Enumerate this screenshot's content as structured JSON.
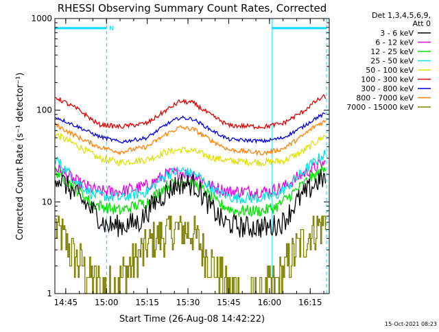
{
  "chart_data": {
    "type": "line",
    "title": "RHESSI Observing Summary Count Rates, Corrected",
    "xlabel": "Start Time (26-Aug-08 14:42:22)",
    "ylabel": "Corrected Count Rate (s⁻¹ detector⁻¹)",
    "x_range_minutes_of_day": [
      881,
      982
    ],
    "y_scale": "log",
    "ylim": [
      1,
      1000
    ],
    "x_ticks": [
      {
        "t": 885,
        "label": "14:45"
      },
      {
        "t": 900,
        "label": "15:00"
      },
      {
        "t": 915,
        "label": "15:15"
      },
      {
        "t": 930,
        "label": "15:30"
      },
      {
        "t": 945,
        "label": "15:45"
      },
      {
        "t": 960,
        "label": "16:00"
      },
      {
        "t": 975,
        "label": "16:15"
      }
    ],
    "y_ticks": [
      {
        "v": 1,
        "label": "1"
      },
      {
        "v": 10,
        "label": "10"
      },
      {
        "v": 100,
        "label": "100"
      },
      {
        "v": 1000,
        "label": "1000"
      }
    ],
    "legend_header": [
      "Det 1,3,4,5,6,9,",
      "Att 0"
    ],
    "legend_position": "right",
    "series": [
      {
        "name": "3 - 6 keV",
        "color": "#000000",
        "jitter": 0.25,
        "points": [
          [
            881,
            20
          ],
          [
            890,
            11
          ],
          [
            895,
            8
          ],
          [
            900,
            5.5
          ],
          [
            905,
            5.5
          ],
          [
            912,
            6
          ],
          [
            918,
            10
          ],
          [
            925,
            15
          ],
          [
            928,
            16
          ],
          [
            933,
            15
          ],
          [
            938,
            9
          ],
          [
            943,
            6
          ],
          [
            950,
            5.3
          ],
          [
            960,
            5.3
          ],
          [
            965,
            6
          ],
          [
            970,
            10
          ],
          [
            975,
            14
          ],
          [
            978,
            17
          ],
          [
            980,
            18
          ]
        ]
      },
      {
        "name": "6 - 12 keV",
        "color": "#e000e0",
        "jitter": 0.14,
        "points": [
          [
            881,
            24
          ],
          [
            890,
            16
          ],
          [
            897,
            13
          ],
          [
            905,
            13
          ],
          [
            915,
            15
          ],
          [
            922,
            20
          ],
          [
            927,
            21
          ],
          [
            932,
            20
          ],
          [
            938,
            15
          ],
          [
            945,
            13
          ],
          [
            960,
            13
          ],
          [
            966,
            15
          ],
          [
            972,
            20
          ],
          [
            977,
            24
          ],
          [
            980,
            26
          ]
        ]
      },
      {
        "name": "12 - 25 keV",
        "color": "#00e000",
        "jitter": 0.13,
        "points": [
          [
            881,
            22
          ],
          [
            890,
            13
          ],
          [
            895,
            9.5
          ],
          [
            905,
            8
          ],
          [
            915,
            10
          ],
          [
            922,
            15
          ],
          [
            928,
            17
          ],
          [
            934,
            15
          ],
          [
            940,
            10
          ],
          [
            947,
            8
          ],
          [
            958,
            8
          ],
          [
            963,
            9
          ],
          [
            968,
            12
          ],
          [
            975,
            18
          ],
          [
            980,
            22
          ]
        ]
      },
      {
        "name": "25 - 50 keV",
        "color": "#00e0e0",
        "jitter": 0.12,
        "points": [
          [
            881,
            30
          ],
          [
            888,
            18
          ],
          [
            895,
            12
          ],
          [
            905,
            11
          ],
          [
            915,
            13
          ],
          [
            922,
            20
          ],
          [
            928,
            22
          ],
          [
            934,
            19
          ],
          [
            940,
            13
          ],
          [
            947,
            11
          ],
          [
            958,
            11
          ],
          [
            963,
            12
          ],
          [
            968,
            16
          ],
          [
            975,
            25
          ],
          [
            980,
            33
          ]
        ]
      },
      {
        "name": "50 - 100 keV",
        "color": "#e0e000",
        "jitter": 0.08,
        "points": [
          [
            881,
            55
          ],
          [
            890,
            40
          ],
          [
            897,
            30
          ],
          [
            905,
            27
          ],
          [
            915,
            29
          ],
          [
            922,
            35
          ],
          [
            927,
            37
          ],
          [
            932,
            36
          ],
          [
            938,
            31
          ],
          [
            945,
            28
          ],
          [
            958,
            27
          ],
          [
            965,
            28
          ],
          [
            972,
            35
          ],
          [
            977,
            45
          ],
          [
            980,
            52
          ]
        ]
      },
      {
        "name": "100 - 300 keV",
        "color": "#e00000",
        "jitter": 0.05,
        "points": [
          [
            881,
            140
          ],
          [
            890,
            100
          ],
          [
            897,
            70
          ],
          [
            905,
            66
          ],
          [
            915,
            72
          ],
          [
            922,
            100
          ],
          [
            927,
            125
          ],
          [
            932,
            120
          ],
          [
            938,
            90
          ],
          [
            945,
            68
          ],
          [
            958,
            66
          ],
          [
            965,
            72
          ],
          [
            972,
            95
          ],
          [
            977,
            125
          ],
          [
            980,
            140
          ]
        ]
      },
      {
        "name": "300 - 800 keV",
        "color": "#0000e0",
        "jitter": 0.04,
        "points": [
          [
            881,
            85
          ],
          [
            890,
            65
          ],
          [
            897,
            52
          ],
          [
            905,
            45
          ],
          [
            915,
            50
          ],
          [
            922,
            70
          ],
          [
            927,
            83
          ],
          [
            932,
            80
          ],
          [
            938,
            62
          ],
          [
            945,
            48
          ],
          [
            958,
            46
          ],
          [
            965,
            50
          ],
          [
            972,
            65
          ],
          [
            977,
            82
          ],
          [
            980,
            90
          ]
        ]
      },
      {
        "name": "800 - 7000 keV",
        "color": "#ff8000",
        "jitter": 0.05,
        "points": [
          [
            881,
            70
          ],
          [
            890,
            50
          ],
          [
            897,
            40
          ],
          [
            905,
            35
          ],
          [
            915,
            40
          ],
          [
            922,
            55
          ],
          [
            927,
            65
          ],
          [
            932,
            62
          ],
          [
            938,
            48
          ],
          [
            945,
            37
          ],
          [
            958,
            34
          ],
          [
            965,
            38
          ],
          [
            972,
            52
          ],
          [
            977,
            68
          ],
          [
            980,
            75
          ]
        ]
      },
      {
        "name": "7000 - 15000 keV",
        "color": "#808000",
        "jitter": 0.22,
        "step": true,
        "points": [
          [
            881,
            5.5
          ],
          [
            884,
            4
          ],
          [
            888,
            2.5
          ],
          [
            892,
            1.8
          ],
          [
            896,
            1.4
          ],
          [
            899,
            1
          ],
          [
            902,
            1.2
          ],
          [
            906,
            1.6
          ],
          [
            910,
            2.2
          ],
          [
            914,
            3
          ],
          [
            918,
            4
          ],
          [
            922,
            4.5
          ],
          [
            925,
            5
          ],
          [
            930,
            5
          ],
          [
            933,
            4
          ],
          [
            937,
            2.5
          ],
          [
            941,
            1.6
          ],
          [
            945,
            1.2
          ],
          [
            950,
            1
          ],
          [
            958,
            1
          ],
          [
            962,
            1.2
          ],
          [
            966,
            2
          ],
          [
            970,
            3
          ],
          [
            975,
            4.5
          ],
          [
            980,
            6
          ]
        ]
      }
    ],
    "annotations": {
      "night_bar_label": "N",
      "night_intervals": [
        [
          881,
          900
        ],
        [
          961,
          981
        ]
      ]
    },
    "footer_date": "15-Oct-2021 08:23"
  }
}
